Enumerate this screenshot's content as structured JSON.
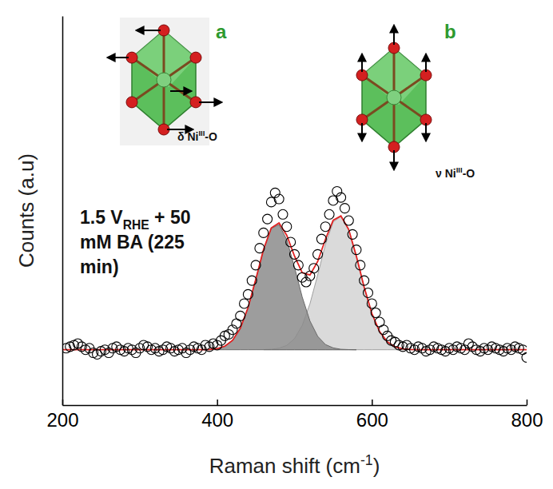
{
  "chart_data": {
    "type": "scatter",
    "y_label": "Counts (a.u)",
    "x_label": {
      "text": "Raman shift (cm",
      "sup": "-1",
      "tail": ")"
    },
    "condition": [
      {
        "text": "1.5 V",
        "sub": "RHE",
        "tail": " + 50"
      },
      {
        "text": "mM BA (225"
      },
      {
        "text": "min)"
      }
    ],
    "insets": [
      {
        "letter": "a",
        "mode": {
          "text": "δ Ni",
          "sup": "III",
          "tail": "-O"
        }
      },
      {
        "letter": "b",
        "mode": {
          "text": "ν Ni",
          "sup": "III",
          "tail": "-O"
        }
      }
    ],
    "xlim": [
      200,
      800
    ],
    "xticks": [
      200,
      400,
      600,
      800
    ],
    "ylim": [
      -0.36,
      2.17
    ],
    "yticks": [],
    "tick_labels": "x",
    "series": [
      {
        "type": "area",
        "color": "#d4d4d4",
        "x": [
          460,
          470,
          480,
          490,
          500,
          510,
          520,
          530,
          540,
          550,
          560,
          570,
          580,
          590,
          600,
          610,
          620,
          630,
          640,
          650,
          660
        ],
        "values": [
          0.001,
          0.003,
          0.01,
          0.028,
          0.072,
          0.158,
          0.299,
          0.487,
          0.684,
          0.83,
          0.867,
          0.782,
          0.608,
          0.408,
          0.236,
          0.118,
          0.051,
          0.019,
          0.006,
          0.002,
          0.0
        ]
      },
      {
        "type": "area",
        "color": "#8c8c8c",
        "x": [
          380,
          390,
          400,
          410,
          420,
          430,
          440,
          450,
          460,
          470,
          480,
          490,
          500,
          510,
          520,
          530,
          540,
          550,
          560,
          570,
          580
        ],
        "values": [
          0.0,
          0.002,
          0.007,
          0.023,
          0.061,
          0.14,
          0.274,
          0.458,
          0.651,
          0.789,
          0.814,
          0.716,
          0.537,
          0.343,
          0.187,
          0.087,
          0.034,
          0.012,
          0.003,
          0.001,
          0.0
        ]
      },
      {
        "type": "line",
        "color": "#e02020",
        "line_style": "solid",
        "x": [
          200,
          380,
          390,
          400,
          410,
          420,
          430,
          440,
          450,
          460,
          470,
          480,
          490,
          500,
          510,
          520,
          530,
          540,
          550,
          560,
          570,
          580,
          590,
          600,
          610,
          620,
          630,
          640,
          650,
          660,
          800
        ],
        "values": [
          0,
          0.0,
          0.002,
          0.007,
          0.023,
          0.061,
          0.14,
          0.274,
          0.458,
          0.652,
          0.792,
          0.824,
          0.744,
          0.609,
          0.501,
          0.486,
          0.574,
          0.718,
          0.842,
          0.87,
          0.783,
          0.608,
          0.408,
          0.236,
          0.118,
          0.051,
          0.019,
          0.006,
          0.002,
          0.0,
          0
        ]
      },
      {
        "type": "scatter",
        "color": "#000000",
        "marker": "circle",
        "x": [
          205,
          210,
          215,
          220,
          225,
          230,
          235,
          240,
          245,
          250,
          255,
          260,
          265,
          270,
          275,
          280,
          285,
          290,
          295,
          300,
          305,
          310,
          315,
          320,
          325,
          330,
          335,
          340,
          345,
          350,
          355,
          360,
          365,
          370,
          375,
          380,
          385,
          390,
          395,
          400,
          405,
          410,
          415,
          420,
          425,
          430,
          435,
          440,
          445,
          450,
          455,
          460,
          465,
          470,
          475,
          480,
          485,
          490,
          495,
          500,
          505,
          510,
          515,
          520,
          525,
          530,
          535,
          540,
          545,
          550,
          555,
          560,
          565,
          570,
          575,
          580,
          585,
          590,
          595,
          600,
          605,
          610,
          615,
          620,
          625,
          630,
          635,
          640,
          645,
          650,
          655,
          660,
          665,
          670,
          675,
          680,
          685,
          690,
          695,
          700,
          705,
          710,
          715,
          720,
          725,
          730,
          735,
          740,
          745,
          750,
          755,
          760,
          765,
          770,
          775,
          780,
          785,
          790,
          795,
          800
        ],
        "values": [
          0.01,
          0.02,
          0.03,
          0.04,
          0.02,
          0.0,
          0.01,
          -0.02,
          -0.03,
          -0.01,
          0.0,
          -0.02,
          0.01,
          0.02,
          0.0,
          -0.01,
          0.01,
          0.0,
          -0.02,
          0.01,
          0.03,
          0.02,
          0.0,
          0.01,
          -0.01,
          0.0,
          0.02,
          0.01,
          -0.01,
          0.0,
          0.01,
          -0.02,
          0.0,
          0.02,
          0.01,
          0.0,
          0.03,
          0.02,
          0.04,
          0.03,
          0.06,
          0.09,
          0.1,
          0.13,
          0.17,
          0.22,
          0.3,
          0.36,
          0.45,
          0.55,
          0.66,
          0.76,
          0.85,
          0.96,
          1.02,
          0.98,
          0.88,
          0.8,
          0.7,
          0.62,
          0.55,
          0.47,
          0.44,
          0.48,
          0.53,
          0.62,
          0.72,
          0.8,
          0.88,
          0.97,
          1.03,
          0.99,
          0.92,
          0.84,
          0.75,
          0.65,
          0.55,
          0.45,
          0.37,
          0.3,
          0.24,
          0.18,
          0.13,
          0.09,
          0.06,
          0.05,
          0.03,
          0.02,
          0.03,
          0.01,
          0.0,
          0.02,
          0.01,
          -0.01,
          0.0,
          0.02,
          0.01,
          0.0,
          -0.01,
          0.01,
          0.0,
          0.02,
          0.01,
          0.0,
          0.04,
          0.02,
          0.0,
          -0.01,
          0.01,
          0.0,
          0.02,
          0.01,
          0.0,
          -0.01,
          0.01,
          0.0,
          0.02,
          0.01,
          0.0,
          -0.05
        ]
      }
    ]
  }
}
